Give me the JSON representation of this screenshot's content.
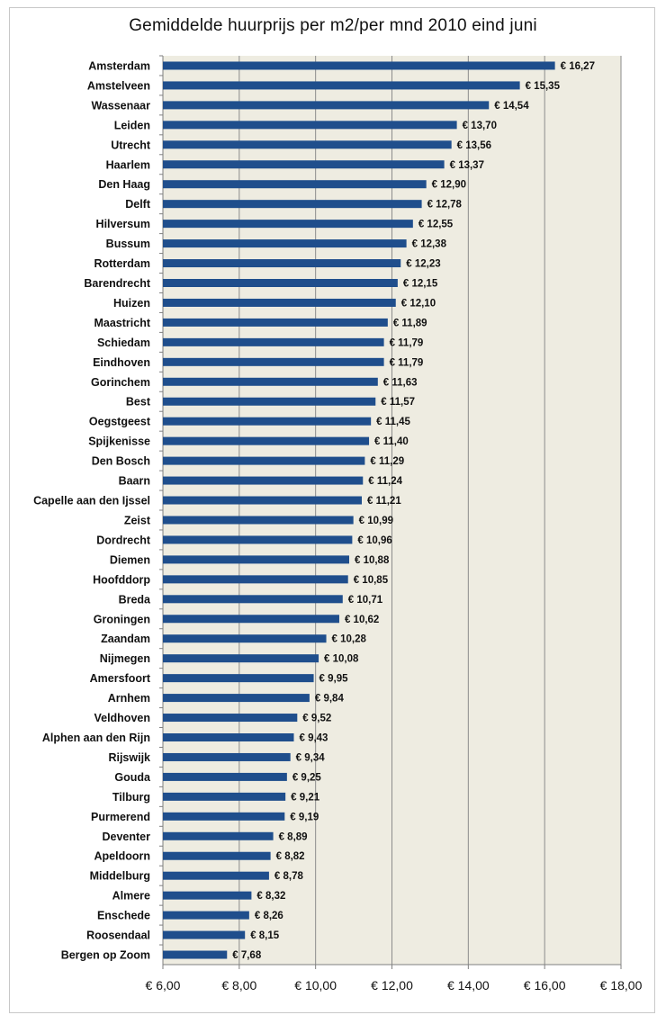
{
  "colors": {
    "bar": "#1f4e8c",
    "plot_bg": "#eeece1",
    "grid": "#8c8c8c",
    "axis": "#7f7f7f"
  },
  "chart_data": {
    "type": "bar",
    "orientation": "horizontal",
    "title": "Gemiddelde huurprijs  per m2/per mnd 2010 eind juni",
    "xlim": [
      6,
      18
    ],
    "x_ticks": [
      6,
      8,
      10,
      12,
      14,
      16,
      18
    ],
    "x_tick_labels": [
      "€ 6,00",
      "€ 8,00",
      "€ 10,00",
      "€ 12,00",
      "€ 14,00",
      "€ 16,00",
      "€ 18,00"
    ],
    "grid": true,
    "legend": "none",
    "categories": [
      "Amsterdam",
      "Amstelveen",
      "Wassenaar",
      "Leiden",
      "Utrecht",
      "Haarlem",
      "Den Haag",
      "Delft",
      "Hilversum",
      "Bussum",
      "Rotterdam",
      "Barendrecht",
      "Huizen",
      "Maastricht",
      "Schiedam",
      "Eindhoven",
      "Gorinchem",
      "Best",
      "Oegstgeest",
      "Spijkenisse",
      "Den Bosch",
      "Baarn",
      "Capelle aan den Ijssel",
      "Zeist",
      "Dordrecht",
      "Diemen",
      "Hoofddorp",
      "Breda",
      "Groningen",
      "Zaandam",
      "Nijmegen",
      "Amersfoort",
      "Arnhem",
      "Veldhoven",
      "Alphen aan den Rijn",
      "Rijswijk",
      "Gouda",
      "Tilburg",
      "Purmerend",
      "Deventer",
      "Apeldoorn",
      "Middelburg",
      "Almere",
      "Enschede",
      "Roosendaal",
      "Bergen op Zoom"
    ],
    "values": [
      16.27,
      15.35,
      14.54,
      13.7,
      13.56,
      13.37,
      12.9,
      12.78,
      12.55,
      12.38,
      12.23,
      12.15,
      12.1,
      11.89,
      11.79,
      11.79,
      11.63,
      11.57,
      11.45,
      11.4,
      11.29,
      11.24,
      11.21,
      10.99,
      10.96,
      10.88,
      10.85,
      10.71,
      10.62,
      10.28,
      10.08,
      9.95,
      9.84,
      9.52,
      9.43,
      9.34,
      9.25,
      9.21,
      9.19,
      8.89,
      8.82,
      8.78,
      8.32,
      8.26,
      8.15,
      7.68
    ],
    "value_labels": [
      "€ 16,27",
      "€ 15,35",
      "€ 14,54",
      "€ 13,70",
      "€ 13,56",
      "€ 13,37",
      "€ 12,90",
      "€ 12,78",
      "€ 12,55",
      "€ 12,38",
      "€ 12,23",
      "€ 12,15",
      "€ 12,10",
      "€ 11,89",
      "€ 11,79",
      "€ 11,79",
      "€ 11,63",
      "€ 11,57",
      "€ 11,45",
      "€ 11,40",
      "€ 11,29",
      "€ 11,24",
      "€ 11,21",
      "€ 10,99",
      "€ 10,96",
      "€ 10,88",
      "€ 10,85",
      "€ 10,71",
      "€ 10,62",
      "€ 10,28",
      "€ 10,08",
      "€ 9,95",
      "€ 9,84",
      "€ 9,52",
      "€ 9,43",
      "€ 9,34",
      "€ 9,25",
      "€ 9,21",
      "€ 9,19",
      "€ 8,89",
      "€ 8,82",
      "€ 8,78",
      "€ 8,32",
      "€ 8,26",
      "€ 8,15",
      "€ 7,68"
    ]
  }
}
